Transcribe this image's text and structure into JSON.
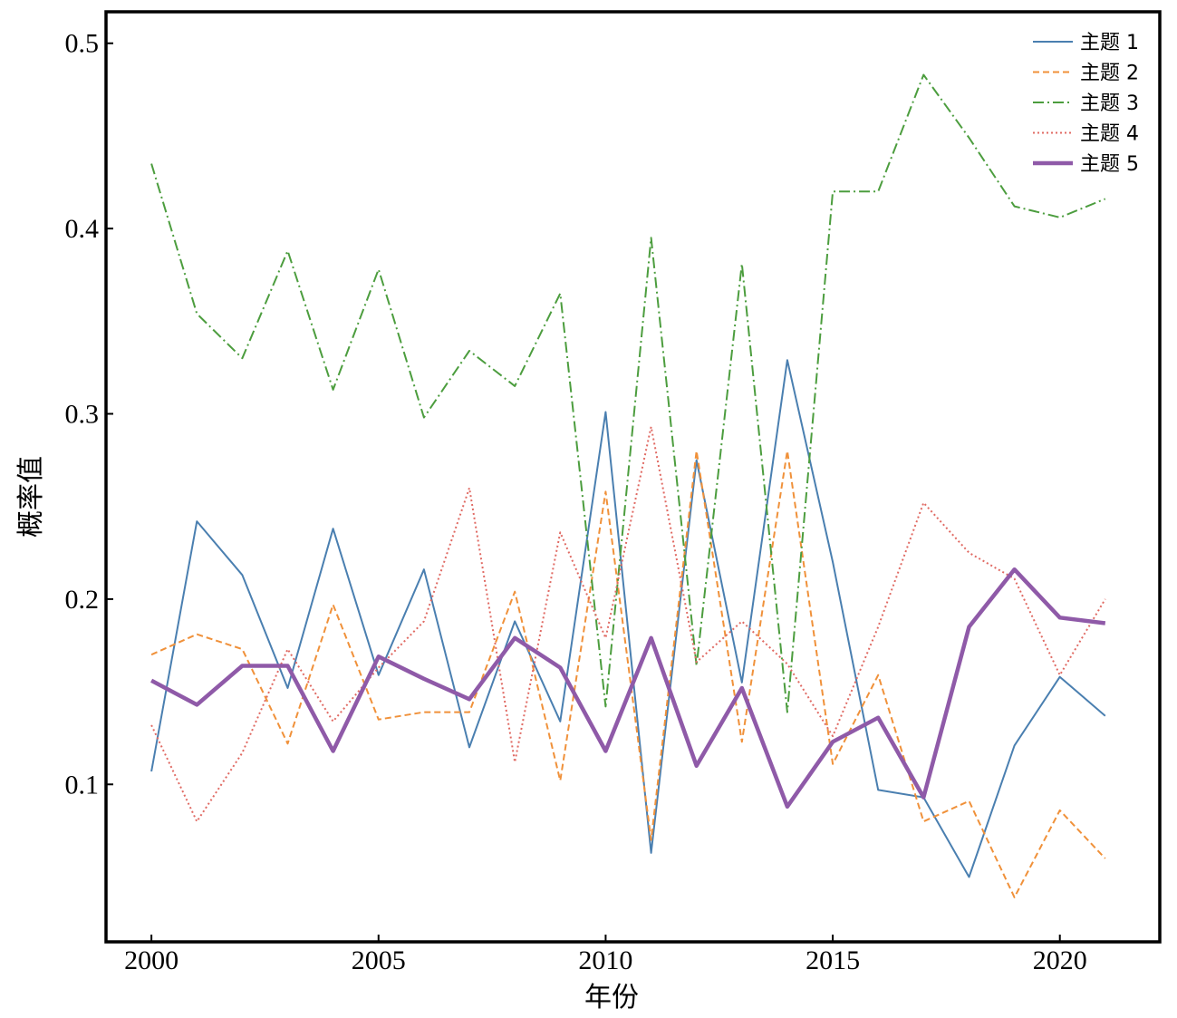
{
  "chart_data": {
    "type": "line",
    "xlabel": "年份",
    "ylabel": "概率值",
    "xlim": [
      1999,
      2022.2
    ],
    "ylim": [
      0.015,
      0.517
    ],
    "xticks": [
      2000,
      2005,
      2010,
      2015,
      2020
    ],
    "xtick_labels": [
      "2000",
      "2005",
      "2010",
      "2015",
      "2020"
    ],
    "yticks": [
      0.1,
      0.2,
      0.3,
      0.4,
      0.5
    ],
    "ytick_labels": [
      "0.1",
      "0.2",
      "0.3",
      "0.4",
      "0.5"
    ],
    "grid": false,
    "legend_position": "top-right",
    "x": [
      2000,
      2001,
      2002,
      2003,
      2004,
      2005,
      2006,
      2007,
      2008,
      2009,
      2010,
      2011,
      2012,
      2013,
      2014,
      2015,
      2016,
      2017,
      2018,
      2019,
      2020,
      2021
    ],
    "series": [
      {
        "name": "主题 1",
        "color": "#4a7fb0",
        "style": "solid",
        "width": 2,
        "values": [
          0.107,
          0.242,
          0.213,
          0.152,
          0.238,
          0.159,
          0.216,
          0.12,
          0.188,
          0.134,
          0.301,
          0.063,
          0.275,
          0.155,
          0.329,
          0.22,
          0.097,
          0.093,
          0.05,
          0.121,
          0.158,
          0.137
        ]
      },
      {
        "name": "主题 2",
        "color": "#f0913a",
        "style": "dashed",
        "width": 2,
        "values": [
          0.17,
          0.181,
          0.173,
          0.122,
          0.197,
          0.135,
          0.139,
          0.139,
          0.204,
          0.102,
          0.258,
          0.07,
          0.28,
          0.123,
          0.28,
          0.111,
          0.159,
          0.08,
          0.091,
          0.039,
          0.086,
          0.06
        ]
      },
      {
        "name": "主题 3",
        "color": "#4c9d3e",
        "style": "dashdot",
        "width": 2,
        "values": [
          0.435,
          0.354,
          0.33,
          0.388,
          0.313,
          0.378,
          0.298,
          0.334,
          0.315,
          0.365,
          0.142,
          0.395,
          0.164,
          0.381,
          0.139,
          0.42,
          0.42,
          0.483,
          0.449,
          0.412,
          0.406,
          0.416
        ]
      },
      {
        "name": "主题 4",
        "color": "#e06a63",
        "style": "dotted",
        "width": 2,
        "values": [
          0.132,
          0.08,
          0.117,
          0.173,
          0.134,
          0.163,
          0.188,
          0.26,
          0.112,
          0.236,
          0.179,
          0.293,
          0.166,
          0.188,
          0.165,
          0.126,
          0.185,
          0.252,
          0.225,
          0.211,
          0.159,
          0.2
        ]
      },
      {
        "name": "主题 5",
        "color": "#8f5aa8",
        "style": "solid",
        "width": 4.5,
        "values": [
          0.156,
          0.143,
          0.164,
          0.164,
          0.118,
          0.169,
          0.157,
          0.146,
          0.179,
          0.163,
          0.118,
          0.179,
          0.11,
          0.152,
          0.088,
          0.123,
          0.136,
          0.093,
          0.185,
          0.216,
          0.19,
          0.187
        ]
      }
    ]
  }
}
